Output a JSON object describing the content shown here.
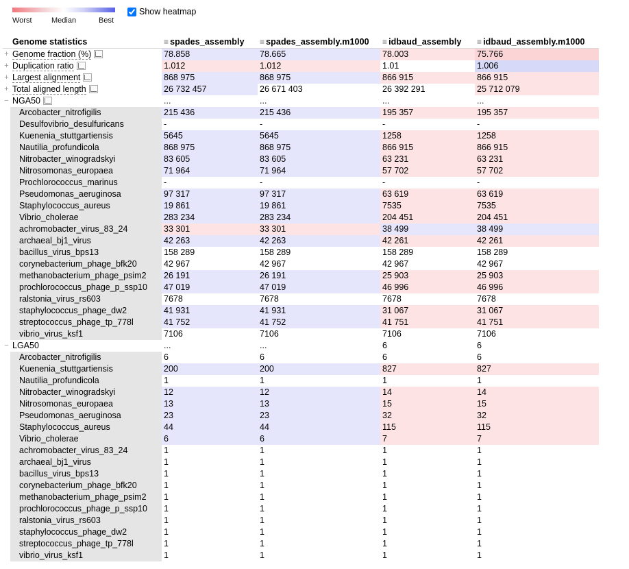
{
  "legend": {
    "worst": "Worst",
    "median": "Median",
    "best": "Best"
  },
  "heatmap_toggle": {
    "label": "Show heatmap",
    "checked": true
  },
  "colors": {
    "bad": "#fde3e4",
    "bad_strong": "#fbd5d6",
    "good": "#e5e6fb",
    "good_strong": "#d7d9f8",
    "neutral": "#ffffff",
    "subrow_name": "#e5e5e5"
  },
  "table": {
    "header_label": "Genome statistics",
    "columns": [
      "spades_assembly",
      "spades_assembly.m1000",
      "idbaud_assembly",
      "idbaud_assembly.m1000"
    ],
    "metrics": [
      {
        "label": "Genome fraction (%)",
        "values": [
          "78.858",
          "78.665",
          "78.003",
          "75.766"
        ],
        "heat": [
          "good",
          "good",
          "bad",
          "bad_strong"
        ]
      },
      {
        "label": "Duplication ratio",
        "values": [
          "1.012",
          "1.012",
          "1.01",
          "1.006"
        ],
        "heat": [
          "bad",
          "bad",
          "neutral",
          "good_strong"
        ]
      },
      {
        "label": "Largest alignment",
        "values": [
          "868 975",
          "868 975",
          "866 915",
          "866 915"
        ],
        "heat": [
          "good",
          "good",
          "bad",
          "bad"
        ]
      },
      {
        "label": "Total aligned length",
        "values": [
          "26 732 457",
          "26 671 403",
          "26 392 291",
          "25 712 079"
        ],
        "heat": [
          "good",
          "neutral",
          "neutral",
          "bad"
        ]
      }
    ],
    "groups": [
      {
        "label": "NGA50",
        "expander": "−",
        "summary": [
          "...",
          "...",
          "...",
          "..."
        ],
        "rows": [
          {
            "name": "Arcobacter_nitrofigilis",
            "values": [
              "215 436",
              "215 436",
              "195 357",
              "195 357"
            ],
            "heat": [
              "good",
              "good",
              "bad",
              "bad"
            ]
          },
          {
            "name": "Desulfovibrio_desulfuricans",
            "values": [
              "-",
              "-",
              "-",
              "-"
            ],
            "heat": [
              "neutral",
              "neutral",
              "neutral",
              "neutral"
            ]
          },
          {
            "name": "Kuenenia_stuttgartiensis",
            "values": [
              "5645",
              "5645",
              "1258",
              "1258"
            ],
            "heat": [
              "good",
              "good",
              "bad",
              "bad"
            ]
          },
          {
            "name": "Nautilia_profundicola",
            "values": [
              "868 975",
              "868 975",
              "866 915",
              "866 915"
            ],
            "heat": [
              "good",
              "good",
              "bad",
              "bad"
            ]
          },
          {
            "name": "Nitrobacter_winogradskyi",
            "values": [
              "83 605",
              "83 605",
              "63 231",
              "63 231"
            ],
            "heat": [
              "good",
              "good",
              "bad",
              "bad"
            ]
          },
          {
            "name": "Nitrosomonas_europaea",
            "values": [
              "71 964",
              "71 964",
              "57 702",
              "57 702"
            ],
            "heat": [
              "good",
              "good",
              "bad",
              "bad"
            ]
          },
          {
            "name": "Prochlorococcus_marinus",
            "values": [
              "-",
              "-",
              "-",
              "-"
            ],
            "heat": [
              "neutral",
              "neutral",
              "neutral",
              "neutral"
            ]
          },
          {
            "name": "Pseudomonas_aeruginosa",
            "values": [
              "97 317",
              "97 317",
              "63 619",
              "63 619"
            ],
            "heat": [
              "good",
              "good",
              "bad",
              "bad"
            ]
          },
          {
            "name": "Staphylococcus_aureus",
            "values": [
              "19 861",
              "19 861",
              "7535",
              "7535"
            ],
            "heat": [
              "good",
              "good",
              "bad",
              "bad"
            ]
          },
          {
            "name": "Vibrio_cholerae",
            "values": [
              "283 234",
              "283 234",
              "204 451",
              "204 451"
            ],
            "heat": [
              "good",
              "good",
              "bad",
              "bad"
            ]
          },
          {
            "name": "achromobacter_virus_83_24",
            "values": [
              "33 301",
              "33 301",
              "38 499",
              "38 499"
            ],
            "heat": [
              "bad",
              "bad",
              "good",
              "good"
            ]
          },
          {
            "name": "archaeal_bj1_virus",
            "values": [
              "42 263",
              "42 263",
              "42 261",
              "42 261"
            ],
            "heat": [
              "good",
              "good",
              "bad",
              "bad"
            ]
          },
          {
            "name": "bacillus_virus_bps13",
            "values": [
              "158 289",
              "158 289",
              "158 289",
              "158 289"
            ],
            "heat": [
              "neutral",
              "neutral",
              "neutral",
              "neutral"
            ]
          },
          {
            "name": "corynebacterium_phage_bfk20",
            "values": [
              "42 967",
              "42 967",
              "42 967",
              "42 967"
            ],
            "heat": [
              "neutral",
              "neutral",
              "neutral",
              "neutral"
            ]
          },
          {
            "name": "methanobacterium_phage_psim2",
            "values": [
              "26 191",
              "26 191",
              "25 903",
              "25 903"
            ],
            "heat": [
              "good",
              "good",
              "bad",
              "bad"
            ]
          },
          {
            "name": "prochlorococcus_phage_p_ssp10",
            "values": [
              "47 019",
              "47 019",
              "46 996",
              "46 996"
            ],
            "heat": [
              "good",
              "good",
              "bad",
              "bad"
            ]
          },
          {
            "name": "ralstonia_virus_rs603",
            "values": [
              "7678",
              "7678",
              "7678",
              "7678"
            ],
            "heat": [
              "neutral",
              "neutral",
              "neutral",
              "neutral"
            ]
          },
          {
            "name": "staphylococcus_phage_dw2",
            "values": [
              "41 931",
              "41 931",
              "31 067",
              "31 067"
            ],
            "heat": [
              "good",
              "good",
              "bad",
              "bad"
            ]
          },
          {
            "name": "streptococcus_phage_tp_778l",
            "values": [
              "41 752",
              "41 752",
              "41 751",
              "41 751"
            ],
            "heat": [
              "good",
              "good",
              "bad",
              "bad"
            ]
          },
          {
            "name": "vibrio_virus_ksf1",
            "values": [
              "7106",
              "7106",
              "7106",
              "7106"
            ],
            "heat": [
              "neutral",
              "neutral",
              "neutral",
              "neutral"
            ]
          }
        ]
      },
      {
        "label": "LGA50",
        "expander": "−",
        "summary": [
          "...",
          "...",
          "6",
          "6"
        ],
        "rows": [
          {
            "name": "Arcobacter_nitrofigilis",
            "values": [
              "6",
              "6",
              "6",
              "6"
            ],
            "heat": [
              "neutral",
              "neutral",
              "neutral",
              "neutral"
            ]
          },
          {
            "name": "Kuenenia_stuttgartiensis",
            "values": [
              "200",
              "200",
              "827",
              "827"
            ],
            "heat": [
              "good",
              "good",
              "bad",
              "bad"
            ]
          },
          {
            "name": "Nautilia_profundicola",
            "values": [
              "1",
              "1",
              "1",
              "1"
            ],
            "heat": [
              "neutral",
              "neutral",
              "neutral",
              "neutral"
            ]
          },
          {
            "name": "Nitrobacter_winogradskyi",
            "values": [
              "12",
              "12",
              "14",
              "14"
            ],
            "heat": [
              "good",
              "good",
              "bad",
              "bad"
            ]
          },
          {
            "name": "Nitrosomonas_europaea",
            "values": [
              "13",
              "13",
              "15",
              "15"
            ],
            "heat": [
              "good",
              "good",
              "bad",
              "bad"
            ]
          },
          {
            "name": "Pseudomonas_aeruginosa",
            "values": [
              "23",
              "23",
              "32",
              "32"
            ],
            "heat": [
              "good",
              "good",
              "bad",
              "bad"
            ]
          },
          {
            "name": "Staphylococcus_aureus",
            "values": [
              "44",
              "44",
              "115",
              "115"
            ],
            "heat": [
              "good",
              "good",
              "bad",
              "bad"
            ]
          },
          {
            "name": "Vibrio_cholerae",
            "values": [
              "6",
              "6",
              "7",
              "7"
            ],
            "heat": [
              "good",
              "good",
              "bad",
              "bad"
            ]
          },
          {
            "name": "achromobacter_virus_83_24",
            "values": [
              "1",
              "1",
              "1",
              "1"
            ],
            "heat": [
              "neutral",
              "neutral",
              "neutral",
              "neutral"
            ]
          },
          {
            "name": "archaeal_bj1_virus",
            "values": [
              "1",
              "1",
              "1",
              "1"
            ],
            "heat": [
              "neutral",
              "neutral",
              "neutral",
              "neutral"
            ]
          },
          {
            "name": "bacillus_virus_bps13",
            "values": [
              "1",
              "1",
              "1",
              "1"
            ],
            "heat": [
              "neutral",
              "neutral",
              "neutral",
              "neutral"
            ]
          },
          {
            "name": "corynebacterium_phage_bfk20",
            "values": [
              "1",
              "1",
              "1",
              "1"
            ],
            "heat": [
              "neutral",
              "neutral",
              "neutral",
              "neutral"
            ]
          },
          {
            "name": "methanobacterium_phage_psim2",
            "values": [
              "1",
              "1",
              "1",
              "1"
            ],
            "heat": [
              "neutral",
              "neutral",
              "neutral",
              "neutral"
            ]
          },
          {
            "name": "prochlorococcus_phage_p_ssp10",
            "values": [
              "1",
              "1",
              "1",
              "1"
            ],
            "heat": [
              "neutral",
              "neutral",
              "neutral",
              "neutral"
            ]
          },
          {
            "name": "ralstonia_virus_rs603",
            "values": [
              "1",
              "1",
              "1",
              "1"
            ],
            "heat": [
              "neutral",
              "neutral",
              "neutral",
              "neutral"
            ]
          },
          {
            "name": "staphylococcus_phage_dw2",
            "values": [
              "1",
              "1",
              "1",
              "1"
            ],
            "heat": [
              "neutral",
              "neutral",
              "neutral",
              "neutral"
            ]
          },
          {
            "name": "streptococcus_phage_tp_778l",
            "values": [
              "1",
              "1",
              "1",
              "1"
            ],
            "heat": [
              "neutral",
              "neutral",
              "neutral",
              "neutral"
            ]
          },
          {
            "name": "vibrio_virus_ksf1",
            "values": [
              "1",
              "1",
              "1",
              "1"
            ],
            "heat": [
              "neutral",
              "neutral",
              "neutral",
              "neutral"
            ]
          }
        ]
      }
    ]
  }
}
